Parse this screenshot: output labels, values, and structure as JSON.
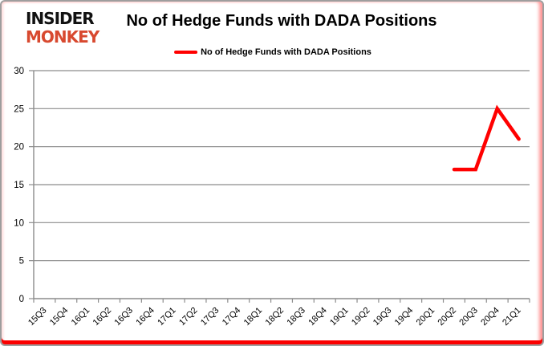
{
  "logo": {
    "line1": "INSIDER",
    "line2": "MONKEY"
  },
  "colors": {
    "line": "#ff0000",
    "grid": "#8c8c8c",
    "axis": "#8c8c8c",
    "text": "#000000",
    "logo_black": "#111111",
    "logo_red": "#d8492f",
    "border_red": "#fa0000"
  },
  "chart_data": {
    "type": "line",
    "title": "No of Hedge Funds with DADA Positions",
    "xlabel": "",
    "ylabel": "",
    "ylim": [
      0,
      30
    ],
    "ytick_step": 5,
    "grid": true,
    "legend_position": "top",
    "categories": [
      "15Q3",
      "15Q4",
      "16Q1",
      "16Q2",
      "16Q3",
      "16Q4",
      "17Q1",
      "17Q2",
      "17Q3",
      "17Q4",
      "18Q1",
      "18Q2",
      "18Q3",
      "18Q4",
      "19Q1",
      "19Q2",
      "19Q3",
      "19Q4",
      "20Q1",
      "20Q2",
      "20Q3",
      "20Q4",
      "21Q1"
    ],
    "series": [
      {
        "name": "No of Hedge Funds with DADA Positions",
        "color": "#ff0000",
        "values": [
          null,
          null,
          null,
          null,
          null,
          null,
          null,
          null,
          null,
          null,
          null,
          null,
          null,
          null,
          null,
          null,
          null,
          null,
          null,
          17,
          17,
          25,
          21
        ]
      }
    ]
  }
}
